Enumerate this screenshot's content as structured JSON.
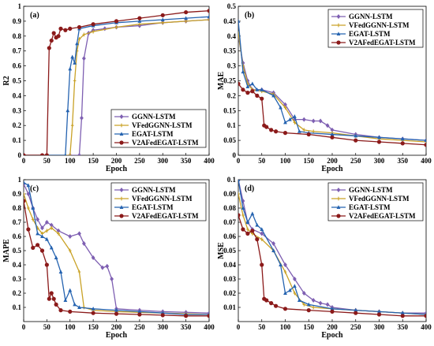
{
  "legend_names": [
    "GGNN-LSTM",
    "VFedGGNN-LSTM",
    "EGAT-LSTM",
    "V2AFedEGAT-LSTM"
  ],
  "colors": {
    "GGNN-LSTM": "#7e5fb2",
    "VFedGGNN-LSTM": "#c9a227",
    "EGAT-LSTM": "#2563b0",
    "V2AFedEGAT-LSTM": "#8b1a1a"
  },
  "chart_data": [
    {
      "type": "line",
      "panel": "(a)",
      "xlabel": "Epoch",
      "ylabel": "R2",
      "xlim": [
        0,
        400
      ],
      "ylim": [
        0,
        1
      ],
      "xticks": [
        "0",
        "50",
        "100",
        "150",
        "200",
        "250",
        "300",
        "350",
        "400"
      ],
      "yticks": [
        "0",
        "0.1",
        "0.2",
        "0.3",
        "0.4",
        "0.5",
        "0.6",
        "0.7",
        "0.8",
        "0.9",
        "1"
      ],
      "legend_position": "bottom-right",
      "series": [
        {
          "name": "GGNN-LSTM",
          "x": [
            0,
            50,
            100,
            120,
            125,
            130,
            140,
            150,
            175,
            200,
            250,
            300,
            350,
            400
          ],
          "y": [
            0,
            0,
            0,
            0,
            0.25,
            0.65,
            0.82,
            0.84,
            0.85,
            0.86,
            0.87,
            0.89,
            0.9,
            0.91
          ]
        },
        {
          "name": "VFedGGNN-LSTM",
          "x": [
            0,
            50,
            100,
            105,
            110,
            115,
            120,
            130,
            150,
            200,
            250,
            300,
            350,
            400
          ],
          "y": [
            0,
            0,
            0,
            0.2,
            0.5,
            0.7,
            0.78,
            0.81,
            0.83,
            0.86,
            0.88,
            0.89,
            0.9,
            0.91
          ]
        },
        {
          "name": "EGAT-LSTM",
          "x": [
            0,
            50,
            90,
            95,
            100,
            105,
            110,
            115,
            120,
            150,
            200,
            250,
            300,
            350,
            400
          ],
          "y": [
            0,
            0,
            0,
            0.3,
            0.58,
            0.66,
            0.62,
            0.75,
            0.85,
            0.87,
            0.89,
            0.9,
            0.91,
            0.92,
            0.93
          ]
        },
        {
          "name": "V2AFedEGAT-LSTM",
          "x": [
            0,
            40,
            50,
            55,
            60,
            65,
            70,
            75,
            80,
            90,
            100,
            120,
            150,
            200,
            250,
            300,
            350,
            400
          ],
          "y": [
            0,
            0,
            0,
            0.72,
            0.77,
            0.82,
            0.79,
            0.8,
            0.85,
            0.84,
            0.85,
            0.86,
            0.88,
            0.9,
            0.92,
            0.94,
            0.96,
            0.97
          ]
        }
      ]
    },
    {
      "type": "line",
      "panel": "(b)",
      "xlabel": "Epoch",
      "ylabel": "MAE",
      "xlim": [
        0,
        400
      ],
      "ylim": [
        0,
        0.5
      ],
      "xticks": [
        "0",
        "50",
        "100",
        "150",
        "200",
        "250",
        "300",
        "350",
        "400"
      ],
      "yticks": [
        "0",
        "0.05",
        "0.1",
        "0.15",
        "0.2",
        "0.25",
        "0.3",
        "0.35",
        "0.4",
        "0.45",
        "0.5"
      ],
      "legend_position": "top-right",
      "series": [
        {
          "name": "GGNN-LSTM",
          "x": [
            0,
            10,
            20,
            30,
            50,
            75,
            100,
            120,
            140,
            160,
            175,
            190,
            200,
            250,
            300,
            350,
            400
          ],
          "y": [
            0.4,
            0.31,
            0.25,
            0.22,
            0.22,
            0.21,
            0.17,
            0.12,
            0.12,
            0.115,
            0.115,
            0.1,
            0.085,
            0.07,
            0.06,
            0.055,
            0.05
          ]
        },
        {
          "name": "VFedGGNN-LSTM",
          "x": [
            0,
            10,
            20,
            30,
            50,
            75,
            100,
            120,
            140,
            160,
            200,
            250,
            300,
            350,
            400
          ],
          "y": [
            0.41,
            0.3,
            0.24,
            0.22,
            0.215,
            0.205,
            0.16,
            0.11,
            0.085,
            0.08,
            0.075,
            0.065,
            0.055,
            0.05,
            0.045
          ]
        },
        {
          "name": "EGAT-LSTM",
          "x": [
            0,
            10,
            20,
            30,
            40,
            50,
            75,
            90,
            100,
            110,
            120,
            130,
            150,
            200,
            250,
            300,
            350,
            400
          ],
          "y": [
            0.45,
            0.28,
            0.23,
            0.24,
            0.22,
            0.22,
            0.2,
            0.16,
            0.11,
            0.12,
            0.13,
            0.08,
            0.075,
            0.07,
            0.065,
            0.06,
            0.055,
            0.05
          ]
        },
        {
          "name": "V2AFedEGAT-LSTM",
          "x": [
            0,
            10,
            20,
            30,
            40,
            50,
            55,
            60,
            70,
            80,
            100,
            150,
            200,
            250,
            300,
            350,
            400
          ],
          "y": [
            0.24,
            0.22,
            0.21,
            0.215,
            0.2,
            0.19,
            0.1,
            0.095,
            0.085,
            0.08,
            0.075,
            0.07,
            0.06,
            0.05,
            0.045,
            0.04,
            0.035
          ]
        }
      ]
    },
    {
      "type": "line",
      "panel": "(c)",
      "xlabel": "Epoch",
      "ylabel": "MAPE",
      "xlim": [
        0,
        400
      ],
      "ylim": [
        0,
        1
      ],
      "xticks": [
        "0",
        "50",
        "100",
        "150",
        "200",
        "250",
        "300",
        "350",
        "400"
      ],
      "yticks": [
        "0.1",
        "0.2",
        "0.3",
        "0.4",
        "0.5",
        "0.6",
        "0.7",
        "0.8",
        "0.9",
        "1"
      ],
      "legend_position": "top-right",
      "series": [
        {
          "name": "GGNN-LSTM",
          "x": [
            0,
            10,
            20,
            30,
            40,
            50,
            60,
            75,
            100,
            120,
            130,
            150,
            170,
            180,
            190,
            200,
            250,
            300,
            350,
            400
          ],
          "y": [
            0.97,
            0.9,
            0.8,
            0.72,
            0.66,
            0.7,
            0.68,
            0.64,
            0.6,
            0.62,
            0.55,
            0.45,
            0.38,
            0.39,
            0.3,
            0.09,
            0.08,
            0.07,
            0.065,
            0.06
          ]
        },
        {
          "name": "VFedGGNN-LSTM",
          "x": [
            0,
            10,
            20,
            30,
            40,
            50,
            60,
            75,
            100,
            120,
            130,
            150,
            200,
            250,
            300,
            350,
            400
          ],
          "y": [
            0.9,
            0.8,
            0.72,
            0.66,
            0.62,
            0.64,
            0.66,
            0.62,
            0.5,
            0.35,
            0.1,
            0.08,
            0.07,
            0.065,
            0.06,
            0.055,
            0.05
          ]
        },
        {
          "name": "EGAT-LSTM",
          "x": [
            0,
            10,
            20,
            30,
            40,
            50,
            60,
            70,
            80,
            90,
            100,
            110,
            120,
            150,
            200,
            250,
            300,
            350,
            400
          ],
          "y": [
            0.98,
            0.96,
            0.8,
            0.62,
            0.6,
            0.58,
            0.52,
            0.45,
            0.35,
            0.15,
            0.22,
            0.12,
            0.1,
            0.09,
            0.08,
            0.07,
            0.06,
            0.05,
            0.05
          ]
        },
        {
          "name": "V2AFedEGAT-LSTM",
          "x": [
            0,
            10,
            20,
            30,
            40,
            50,
            55,
            60,
            65,
            70,
            80,
            100,
            150,
            200,
            250,
            300,
            350,
            400
          ],
          "y": [
            0.85,
            0.65,
            0.52,
            0.54,
            0.5,
            0.4,
            0.16,
            0.2,
            0.16,
            0.12,
            0.08,
            0.07,
            0.06,
            0.055,
            0.05,
            0.045,
            0.04,
            0.04
          ]
        }
      ]
    },
    {
      "type": "line",
      "panel": "(d)",
      "xlabel": "Epoch",
      "ylabel": "MSE",
      "xlim": [
        0,
        400
      ],
      "ylim": [
        0,
        0.1
      ],
      "xticks": [
        "0",
        "50",
        "100",
        "150",
        "200",
        "250",
        "300",
        "350",
        "400"
      ],
      "yticks": [
        "0.01",
        "0.02",
        "0.03",
        "0.04",
        "0.05",
        "0.06",
        "0.07",
        "0.08",
        "0.09",
        "0.1"
      ],
      "legend_position": "top-right",
      "series": [
        {
          "name": "GGNN-LSTM",
          "x": [
            0,
            10,
            20,
            30,
            50,
            75,
            100,
            120,
            140,
            160,
            175,
            190,
            200,
            250,
            300,
            350,
            400
          ],
          "y": [
            0.1,
            0.085,
            0.07,
            0.065,
            0.062,
            0.055,
            0.04,
            0.03,
            0.02,
            0.015,
            0.013,
            0.012,
            0.01,
            0.008,
            0.007,
            0.006,
            0.006
          ]
        },
        {
          "name": "VFedGGNN-LSTM",
          "x": [
            0,
            10,
            20,
            30,
            50,
            75,
            100,
            120,
            140,
            160,
            200,
            250,
            300,
            350,
            400
          ],
          "y": [
            0.09,
            0.075,
            0.065,
            0.062,
            0.058,
            0.05,
            0.035,
            0.02,
            0.012,
            0.01,
            0.009,
            0.008,
            0.007,
            0.006,
            0.005
          ]
        },
        {
          "name": "EGAT-LSTM",
          "x": [
            0,
            10,
            20,
            30,
            40,
            50,
            75,
            90,
            100,
            110,
            120,
            130,
            150,
            200,
            250,
            300,
            350,
            400
          ],
          "y": [
            0.1,
            0.08,
            0.07,
            0.076,
            0.068,
            0.065,
            0.05,
            0.04,
            0.02,
            0.022,
            0.025,
            0.015,
            0.012,
            0.009,
            0.008,
            0.007,
            0.006,
            0.005
          ]
        },
        {
          "name": "V2AFedEGAT-LSTM",
          "x": [
            0,
            10,
            20,
            30,
            40,
            50,
            55,
            60,
            70,
            80,
            100,
            150,
            200,
            250,
            300,
            350,
            400
          ],
          "y": [
            0.075,
            0.065,
            0.062,
            0.064,
            0.058,
            0.04,
            0.016,
            0.015,
            0.013,
            0.011,
            0.009,
            0.008,
            0.007,
            0.006,
            0.005,
            0.004,
            0.004
          ]
        }
      ]
    }
  ]
}
